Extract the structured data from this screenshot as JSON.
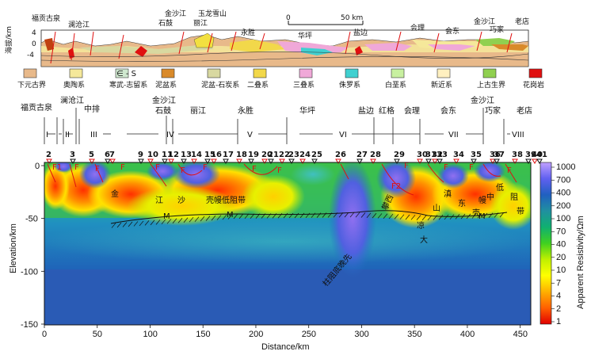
{
  "top_section": {
    "locations": [
      {
        "name": "福贡古泉"
      },
      {
        "name": "澜沧江"
      },
      {
        "name": "金沙江"
      },
      {
        "name": "石鼓"
      },
      {
        "name": "玉龙雪山"
      },
      {
        "name": "丽江"
      },
      {
        "name": "永胜"
      },
      {
        "name": "华坪"
      },
      {
        "name": "盐边"
      },
      {
        "name": "会理"
      },
      {
        "name": "会东"
      },
      {
        "name": "金沙江"
      },
      {
        "name": "巧家"
      },
      {
        "name": "老店"
      }
    ],
    "ylabel": "海拔/km",
    "yticks": [
      "4",
      "0",
      "-4"
    ],
    "scale_bar": {
      "start": "0",
      "end": "50 km"
    }
  },
  "legend": [
    {
      "label": "下元古界",
      "color": "#e8b98a"
    },
    {
      "label": "奥陶系",
      "color": "#f5e89a"
    },
    {
      "label": "寒武-志留系",
      "color": "#cfe8cf",
      "code": "∈ - S"
    },
    {
      "label": "泥盆系",
      "color": "#d98a2a"
    },
    {
      "label": "泥盆-石炭系",
      "color": "#d8d8a0"
    },
    {
      "label": "二叠系",
      "color": "#f2d84a"
    },
    {
      "label": "三叠系",
      "color": "#f0a8d8"
    },
    {
      "label": "侏罗系",
      "color": "#40d0d0"
    },
    {
      "label": "白垩系",
      "color": "#c8f0a0"
    },
    {
      "label": "新近系",
      "color": "#fff0c0"
    },
    {
      "label": "上古生界",
      "color": "#90d050"
    },
    {
      "label": "花岗岩",
      "color": "#e01010"
    }
  ],
  "profile": {
    "location_row1": [
      "福贡古泉",
      "澜沧江",
      "金沙江",
      "金沙江"
    ],
    "location_row2": [
      "中排",
      "石鼓",
      "丽江",
      "永胜",
      "华坪",
      "盐边",
      "红格",
      "会理",
      "会东",
      "巧家",
      "老店"
    ],
    "zones": [
      "I",
      "II",
      "III",
      "IV",
      "V",
      "VI",
      "VII",
      "VIII"
    ],
    "stations": [
      "2",
      "3",
      "5",
      "6",
      "7",
      "9",
      "10",
      "11",
      "12",
      "13",
      "14",
      "15",
      "16",
      "17",
      "18",
      "19",
      "20",
      "21",
      "22",
      "23",
      "24",
      "25",
      "26",
      "27",
      "28",
      "29",
      "30",
      "31",
      "32",
      "33",
      "34",
      "35",
      "36",
      "37",
      "38",
      "39",
      "40",
      "41"
    ],
    "faults": [
      "F1",
      "F",
      "F",
      "F",
      "F",
      "F",
      "F",
      "F",
      "F",
      "F2",
      "F",
      "F",
      "F",
      "F"
    ],
    "annotations": [
      "金",
      "江",
      "沙",
      "壳幔低阻带",
      "滇",
      "东",
      "山",
      "壳",
      "幔",
      "中",
      "低",
      "阻",
      "带",
      "大",
      "凉",
      "攀西",
      "柱阻底晚先",
      "M",
      "M",
      "M"
    ],
    "xlabel": "Distance/km",
    "ylabel": "Elevation/km",
    "xticks": [
      "0",
      "50",
      "100",
      "150",
      "200",
      "250",
      "300",
      "350",
      "400",
      "450"
    ],
    "yticks": [
      "0",
      "-50",
      "-100",
      "-150"
    ]
  },
  "colorbar": {
    "label": "Apparent Resistivity/Ωm",
    "ticks": [
      "1000",
      "700",
      "400",
      "200",
      "100",
      "70",
      "40",
      "20",
      "10",
      "7",
      "4",
      "2",
      "1"
    ]
  }
}
